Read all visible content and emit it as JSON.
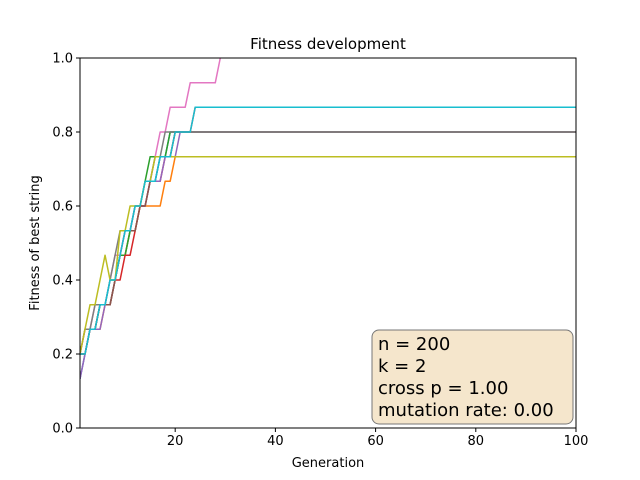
{
  "chart_data": {
    "type": "line",
    "title": "Fitness development",
    "xlabel": "Generation",
    "ylabel": "Fitness of best string",
    "xlim": [
      1,
      100
    ],
    "ylim": [
      0.0,
      1.0
    ],
    "xticks": [
      20,
      40,
      60,
      80,
      100
    ],
    "xtick_labels": [
      "20",
      "40",
      "60",
      "80",
      "100"
    ],
    "yticks": [
      0.0,
      0.2,
      0.4,
      0.6,
      0.8,
      1.0
    ],
    "ytick_labels": [
      "0.0",
      "0.2",
      "0.4",
      "0.6",
      "0.8",
      "1.0"
    ],
    "grid": false,
    "legend": "none",
    "annotation": {
      "lines": [
        "n = 200",
        "k = 2",
        "cross p = 1.00",
        "mutation rate: 0.00"
      ],
      "position": "bottom-right",
      "box_fill": "#f5e6cc",
      "box_edge": "#777777"
    },
    "series": [
      {
        "color": "#1f77b4",
        "points": [
          [
            1,
            0.133
          ],
          [
            2,
            0.2
          ],
          [
            3,
            0.267
          ],
          [
            5,
            0.333
          ],
          [
            7,
            0.4
          ],
          [
            9,
            0.467
          ],
          [
            11,
            0.533
          ],
          [
            13,
            0.6
          ],
          [
            15,
            0.667
          ],
          [
            17,
            0.733
          ],
          [
            19,
            0.8
          ],
          [
            21,
            0.8
          ],
          [
            100,
            0.8
          ]
        ]
      },
      {
        "color": "#ff7f0e",
        "points": [
          [
            1,
            0.2
          ],
          [
            2,
            0.267
          ],
          [
            6,
            0.333
          ],
          [
            8,
            0.4
          ],
          [
            9,
            0.467
          ],
          [
            11,
            0.533
          ],
          [
            13,
            0.6
          ],
          [
            18,
            0.667
          ],
          [
            20,
            0.733
          ],
          [
            22,
            0.733
          ],
          [
            100,
            0.733
          ]
        ]
      },
      {
        "color": "#2ca02c",
        "points": [
          [
            1,
            0.2
          ],
          [
            3,
            0.267
          ],
          [
            5,
            0.333
          ],
          [
            8,
            0.4
          ],
          [
            9,
            0.467
          ],
          [
            11,
            0.533
          ],
          [
            12,
            0.6
          ],
          [
            14,
            0.667
          ],
          [
            15,
            0.733
          ],
          [
            19,
            0.8
          ],
          [
            100,
            0.8
          ]
        ]
      },
      {
        "color": "#d62728",
        "points": [
          [
            1,
            0.2
          ],
          [
            3,
            0.267
          ],
          [
            5,
            0.333
          ],
          [
            8,
            0.4
          ],
          [
            10,
            0.467
          ],
          [
            12,
            0.533
          ],
          [
            13,
            0.6
          ],
          [
            15,
            0.667
          ],
          [
            18,
            0.733
          ],
          [
            20,
            0.8
          ],
          [
            24,
            0.867
          ],
          [
            100,
            0.867
          ]
        ]
      },
      {
        "color": "#9467bd",
        "points": [
          [
            1,
            0.133
          ],
          [
            2,
            0.2
          ],
          [
            3,
            0.267
          ],
          [
            6,
            0.333
          ],
          [
            8,
            0.4
          ],
          [
            9,
            0.467
          ],
          [
            10,
            0.533
          ],
          [
            12,
            0.6
          ],
          [
            15,
            0.667
          ],
          [
            18,
            0.733
          ],
          [
            21,
            0.8
          ],
          [
            100,
            0.8
          ]
        ]
      },
      {
        "color": "#8c564b",
        "points": [
          [
            1,
            0.2
          ],
          [
            3,
            0.267
          ],
          [
            5,
            0.333
          ],
          [
            8,
            0.4
          ],
          [
            9,
            0.467
          ],
          [
            10,
            0.533
          ],
          [
            13,
            0.6
          ],
          [
            15,
            0.667
          ],
          [
            17,
            0.733
          ],
          [
            20,
            0.8
          ],
          [
            100,
            0.8
          ]
        ]
      },
      {
        "color": "#e377c2",
        "points": [
          [
            1,
            0.2
          ],
          [
            2,
            0.267
          ],
          [
            4,
            0.333
          ],
          [
            7,
            0.4
          ],
          [
            8,
            0.467
          ],
          [
            10,
            0.533
          ],
          [
            12,
            0.6
          ],
          [
            14,
            0.667
          ],
          [
            16,
            0.733
          ],
          [
            17,
            0.8
          ],
          [
            19,
            0.867
          ],
          [
            23,
            0.933
          ],
          [
            29,
            1.0
          ]
        ]
      },
      {
        "color": "#7f7f7f",
        "points": [
          [
            1,
            0.2
          ],
          [
            2,
            0.267
          ],
          [
            4,
            0.333
          ],
          [
            7,
            0.4
          ],
          [
            8,
            0.467
          ],
          [
            9,
            0.533
          ],
          [
            12,
            0.6
          ],
          [
            14,
            0.667
          ],
          [
            16,
            0.733
          ],
          [
            18,
            0.8
          ],
          [
            100,
            0.8
          ]
        ]
      },
      {
        "color": "#bcbd22",
        "points": [
          [
            1,
            0.2
          ],
          [
            2,
            0.267
          ],
          [
            3,
            0.333
          ],
          [
            5,
            0.4
          ],
          [
            6,
            0.467
          ],
          [
            7,
            0.4
          ],
          [
            9,
            0.533
          ],
          [
            11,
            0.6
          ],
          [
            14,
            0.667
          ],
          [
            16,
            0.733
          ],
          [
            100,
            0.733
          ]
        ]
      },
      {
        "color": "#17becf",
        "points": [
          [
            1,
            0.2
          ],
          [
            3,
            0.267
          ],
          [
            5,
            0.333
          ],
          [
            7,
            0.4
          ],
          [
            9,
            0.467
          ],
          [
            10,
            0.533
          ],
          [
            12,
            0.6
          ],
          [
            14,
            0.667
          ],
          [
            17,
            0.733
          ],
          [
            20,
            0.8
          ],
          [
            24,
            0.867
          ],
          [
            100,
            0.867
          ]
        ]
      }
    ]
  }
}
